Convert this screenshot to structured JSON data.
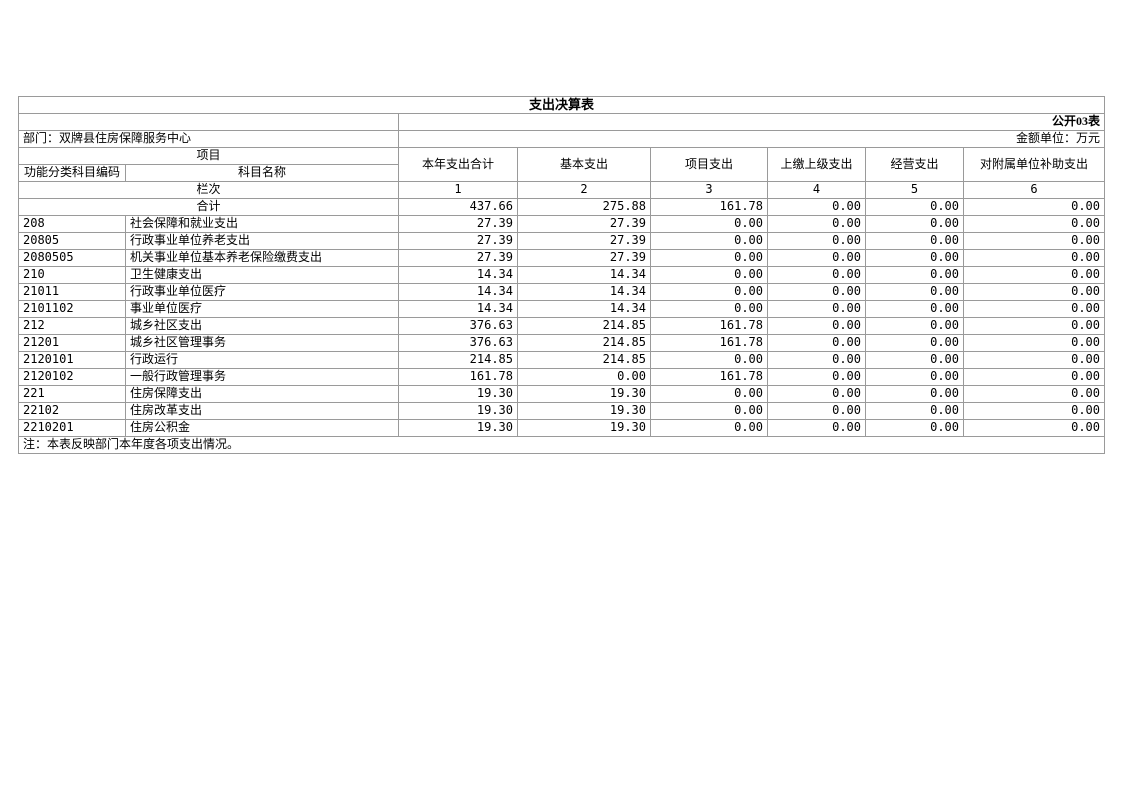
{
  "page": {
    "title": "支出决算表",
    "form_code": "公开03表",
    "department": "部门：双牌县住房保障服务中心",
    "unit": "金额单位：万元",
    "note": "注：本表反映部门本年度各项支出情况。"
  },
  "table": {
    "header": {
      "project_group": "项目",
      "code_column": "功能分类科目编码",
      "name_column": "科目名称",
      "value_columns": [
        "本年支出合计",
        "基本支出",
        "项目支出",
        "上缴上级支出",
        "经营支出",
        "对附属单位补助支出"
      ],
      "row_index_label": "栏次",
      "row_index_numbers": [
        "1",
        "2",
        "3",
        "4",
        "5",
        "6"
      ]
    },
    "total_row": {
      "label": "合计",
      "values": [
        "437.66",
        "275.88",
        "161.78",
        "0.00",
        "0.00",
        "0.00"
      ]
    },
    "rows": [
      {
        "code": "208",
        "name": "社会保障和就业支出",
        "values": [
          "27.39",
          "27.39",
          "0.00",
          "0.00",
          "0.00",
          "0.00"
        ]
      },
      {
        "code": "20805",
        "name": "行政事业单位养老支出",
        "values": [
          "27.39",
          "27.39",
          "0.00",
          "0.00",
          "0.00",
          "0.00"
        ]
      },
      {
        "code": "2080505",
        "name": "机关事业单位基本养老保险缴费支出",
        "values": [
          "27.39",
          "27.39",
          "0.00",
          "0.00",
          "0.00",
          "0.00"
        ]
      },
      {
        "code": "210",
        "name": "卫生健康支出",
        "values": [
          "14.34",
          "14.34",
          "0.00",
          "0.00",
          "0.00",
          "0.00"
        ]
      },
      {
        "code": "21011",
        "name": "行政事业单位医疗",
        "values": [
          "14.34",
          "14.34",
          "0.00",
          "0.00",
          "0.00",
          "0.00"
        ]
      },
      {
        "code": "2101102",
        "name": "事业单位医疗",
        "values": [
          "14.34",
          "14.34",
          "0.00",
          "0.00",
          "0.00",
          "0.00"
        ]
      },
      {
        "code": "212",
        "name": "城乡社区支出",
        "values": [
          "376.63",
          "214.85",
          "161.78",
          "0.00",
          "0.00",
          "0.00"
        ]
      },
      {
        "code": "21201",
        "name": "城乡社区管理事务",
        "values": [
          "376.63",
          "214.85",
          "161.78",
          "0.00",
          "0.00",
          "0.00"
        ]
      },
      {
        "code": "2120101",
        "name": "行政运行",
        "values": [
          "214.85",
          "214.85",
          "0.00",
          "0.00",
          "0.00",
          "0.00"
        ]
      },
      {
        "code": "2120102",
        "name": "一般行政管理事务",
        "values": [
          "161.78",
          "0.00",
          "161.78",
          "0.00",
          "0.00",
          "0.00"
        ]
      },
      {
        "code": "221",
        "name": "住房保障支出",
        "values": [
          "19.30",
          "19.30",
          "0.00",
          "0.00",
          "0.00",
          "0.00"
        ]
      },
      {
        "code": "22102",
        "name": "住房改革支出",
        "values": [
          "19.30",
          "19.30",
          "0.00",
          "0.00",
          "0.00",
          "0.00"
        ]
      },
      {
        "code": "2210201",
        "name": "住房公积金",
        "values": [
          "19.30",
          "19.30",
          "0.00",
          "0.00",
          "0.00",
          "0.00"
        ]
      }
    ]
  },
  "colors": {
    "background": "#ffffff",
    "text": "#000000",
    "grid_line": "#9a9a9a",
    "outer_line": "#3a3a3a",
    "thick_line": "#000000"
  }
}
